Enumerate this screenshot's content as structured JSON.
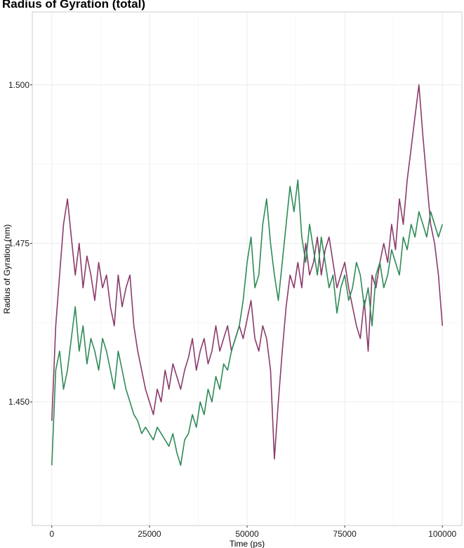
{
  "chart_data": {
    "type": "line",
    "title": "Radius of Gyration (total)",
    "xlabel": "Time (ps)",
    "ylabel": "Radius of Gyration (nm)",
    "xlim": [
      -5000,
      105000
    ],
    "ylim": [
      1.4305,
      1.5115
    ],
    "x_ticks": [
      0,
      25000,
      50000,
      75000,
      100000
    ],
    "x_tick_labels": [
      "0",
      "25000",
      "50000",
      "75000",
      "100000"
    ],
    "y_ticks": [
      1.45,
      1.475,
      1.5
    ],
    "y_tick_labels": [
      "1.450",
      "1.475",
      "1.500"
    ],
    "grid": true,
    "legend": "none",
    "series": [
      {
        "color": "#8b3a6b",
        "x": [
          0,
          1000,
          2000,
          3000,
          4000,
          5000,
          6000,
          7000,
          8000,
          9000,
          10000,
          11000,
          12000,
          13000,
          14000,
          15000,
          16000,
          17000,
          18000,
          19000,
          20000,
          21000,
          22000,
          23000,
          24000,
          25000,
          26000,
          27000,
          28000,
          29000,
          30000,
          31000,
          32000,
          33000,
          34000,
          35000,
          36000,
          37000,
          38000,
          39000,
          40000,
          41000,
          42000,
          43000,
          44000,
          45000,
          46000,
          47000,
          48000,
          49000,
          50000,
          51000,
          52000,
          53000,
          54000,
          55000,
          56000,
          57000,
          58000,
          59000,
          60000,
          61000,
          62000,
          63000,
          64000,
          65000,
          66000,
          67000,
          68000,
          69000,
          70000,
          71000,
          72000,
          73000,
          74000,
          75000,
          76000,
          77000,
          78000,
          79000,
          80000,
          81000,
          82000,
          83000,
          84000,
          85000,
          86000,
          87000,
          88000,
          89000,
          90000,
          91000,
          92000,
          93000,
          94000,
          95000,
          96000,
          97000,
          98000,
          99000,
          100000
        ],
        "y": [
          1.447,
          1.462,
          1.47,
          1.478,
          1.482,
          1.476,
          1.47,
          1.475,
          1.468,
          1.473,
          1.47,
          1.466,
          1.472,
          1.468,
          1.47,
          1.465,
          1.462,
          1.47,
          1.465,
          1.468,
          1.47,
          1.462,
          1.458,
          1.455,
          1.452,
          1.45,
          1.448,
          1.452,
          1.45,
          1.455,
          1.452,
          1.456,
          1.454,
          1.452,
          1.455,
          1.457,
          1.46,
          1.455,
          1.458,
          1.46,
          1.456,
          1.458,
          1.462,
          1.458,
          1.46,
          1.462,
          1.458,
          1.46,
          1.462,
          1.46,
          1.463,
          1.466,
          1.46,
          1.458,
          1.462,
          1.46,
          1.455,
          1.441,
          1.45,
          1.458,
          1.465,
          1.47,
          1.468,
          1.472,
          1.468,
          1.475,
          1.47,
          1.472,
          1.476,
          1.47,
          1.474,
          1.476,
          1.472,
          1.468,
          1.47,
          1.472,
          1.468,
          1.465,
          1.462,
          1.46,
          1.466,
          1.458,
          1.47,
          1.468,
          1.472,
          1.475,
          1.472,
          1.478,
          1.474,
          1.482,
          1.478,
          1.485,
          1.49,
          1.495,
          1.5,
          1.492,
          1.485,
          1.478,
          1.475,
          1.47,
          1.462
        ]
      },
      {
        "color": "#2e8b57",
        "x": [
          0,
          1000,
          2000,
          3000,
          4000,
          5000,
          6000,
          7000,
          8000,
          9000,
          10000,
          11000,
          12000,
          13000,
          14000,
          15000,
          16000,
          17000,
          18000,
          19000,
          20000,
          21000,
          22000,
          23000,
          24000,
          25000,
          26000,
          27000,
          28000,
          29000,
          30000,
          31000,
          32000,
          33000,
          34000,
          35000,
          36000,
          37000,
          38000,
          39000,
          40000,
          41000,
          42000,
          43000,
          44000,
          45000,
          46000,
          47000,
          48000,
          49000,
          50000,
          51000,
          52000,
          53000,
          54000,
          55000,
          56000,
          57000,
          58000,
          59000,
          60000,
          61000,
          62000,
          63000,
          64000,
          65000,
          66000,
          67000,
          68000,
          69000,
          70000,
          71000,
          72000,
          73000,
          74000,
          75000,
          76000,
          77000,
          78000,
          79000,
          80000,
          81000,
          82000,
          83000,
          84000,
          85000,
          86000,
          87000,
          88000,
          89000,
          90000,
          91000,
          92000,
          93000,
          94000,
          95000,
          96000,
          97000,
          98000,
          99000,
          100000
        ],
        "y": [
          1.44,
          1.455,
          1.458,
          1.452,
          1.455,
          1.46,
          1.465,
          1.458,
          1.462,
          1.456,
          1.46,
          1.458,
          1.455,
          1.46,
          1.458,
          1.455,
          1.452,
          1.458,
          1.455,
          1.452,
          1.45,
          1.448,
          1.447,
          1.445,
          1.446,
          1.445,
          1.444,
          1.446,
          1.445,
          1.444,
          1.443,
          1.445,
          1.442,
          1.44,
          1.444,
          1.445,
          1.448,
          1.446,
          1.45,
          1.448,
          1.452,
          1.45,
          1.454,
          1.452,
          1.456,
          1.455,
          1.458,
          1.46,
          1.462,
          1.466,
          1.472,
          1.476,
          1.468,
          1.47,
          1.478,
          1.482,
          1.475,
          1.47,
          1.466,
          1.472,
          1.478,
          1.484,
          1.48,
          1.485,
          1.476,
          1.472,
          1.478,
          1.474,
          1.47,
          1.476,
          1.472,
          1.468,
          1.47,
          1.464,
          1.468,
          1.47,
          1.466,
          1.468,
          1.472,
          1.47,
          1.465,
          1.468,
          1.462,
          1.47,
          1.472,
          1.468,
          1.47,
          1.474,
          1.472,
          1.47,
          1.476,
          1.474,
          1.478,
          1.476,
          1.48,
          1.478,
          1.476,
          1.48,
          1.478,
          1.476,
          1.478
        ]
      }
    ]
  }
}
